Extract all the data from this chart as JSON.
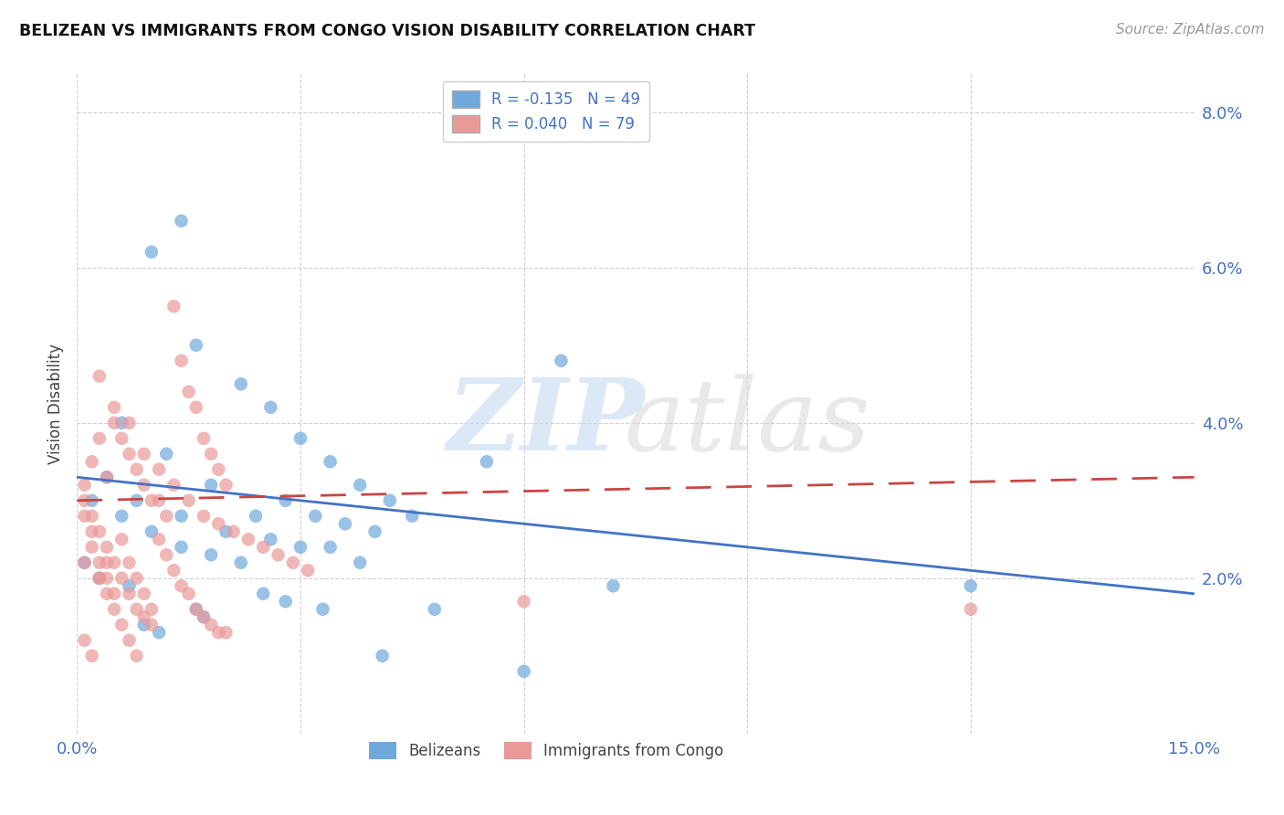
{
  "title": "BELIZEAN VS IMMIGRANTS FROM CONGO VISION DISABILITY CORRELATION CHART",
  "source": "Source: ZipAtlas.com",
  "ylabel": "Vision Disability",
  "xlim": [
    0.0,
    0.15
  ],
  "ylim": [
    0.0,
    0.085
  ],
  "belizean_color": "#6fa8dc",
  "congo_color": "#ea9999",
  "belizean_line_color": "#4472c4",
  "congo_line_color": "#cc4444",
  "belizean_R": -0.135,
  "belizean_N": 49,
  "congo_R": 0.04,
  "congo_N": 79,
  "belizean_x": [
    0.014,
    0.01,
    0.016,
    0.022,
    0.026,
    0.03,
    0.034,
    0.038,
    0.042,
    0.006,
    0.012,
    0.018,
    0.024,
    0.028,
    0.032,
    0.036,
    0.04,
    0.004,
    0.008,
    0.014,
    0.02,
    0.026,
    0.03,
    0.034,
    0.002,
    0.006,
    0.01,
    0.014,
    0.018,
    0.022,
    0.055,
    0.065,
    0.12,
    0.001,
    0.003,
    0.007,
    0.045,
    0.028,
    0.072,
    0.038,
    0.016,
    0.025,
    0.009,
    0.017,
    0.033,
    0.048,
    0.011,
    0.041,
    0.06
  ],
  "belizean_y": [
    0.066,
    0.062,
    0.05,
    0.045,
    0.042,
    0.038,
    0.035,
    0.032,
    0.03,
    0.04,
    0.036,
    0.032,
    0.028,
    0.03,
    0.028,
    0.027,
    0.026,
    0.033,
    0.03,
    0.028,
    0.026,
    0.025,
    0.024,
    0.024,
    0.03,
    0.028,
    0.026,
    0.024,
    0.023,
    0.022,
    0.035,
    0.048,
    0.019,
    0.022,
    0.02,
    0.019,
    0.028,
    0.017,
    0.019,
    0.022,
    0.016,
    0.018,
    0.014,
    0.015,
    0.016,
    0.016,
    0.013,
    0.01,
    0.008
  ],
  "congo_x": [
    0.001,
    0.001,
    0.002,
    0.002,
    0.003,
    0.003,
    0.004,
    0.004,
    0.005,
    0.005,
    0.006,
    0.006,
    0.007,
    0.007,
    0.008,
    0.008,
    0.009,
    0.009,
    0.01,
    0.01,
    0.011,
    0.011,
    0.012,
    0.012,
    0.013,
    0.013,
    0.014,
    0.014,
    0.015,
    0.015,
    0.016,
    0.016,
    0.017,
    0.017,
    0.018,
    0.018,
    0.019,
    0.019,
    0.02,
    0.02,
    0.003,
    0.005,
    0.007,
    0.009,
    0.011,
    0.013,
    0.015,
    0.017,
    0.019,
    0.021,
    0.023,
    0.025,
    0.027,
    0.029,
    0.031,
    0.001,
    0.002,
    0.003,
    0.004,
    0.005,
    0.006,
    0.007,
    0.008,
    0.009,
    0.01,
    0.06,
    0.12,
    0.002,
    0.004,
    0.003,
    0.001,
    0.002,
    0.001,
    0.003,
    0.004,
    0.005,
    0.006,
    0.007,
    0.008
  ],
  "congo_y": [
    0.032,
    0.028,
    0.035,
    0.026,
    0.038,
    0.022,
    0.033,
    0.02,
    0.04,
    0.018,
    0.038,
    0.025,
    0.036,
    0.022,
    0.034,
    0.02,
    0.032,
    0.018,
    0.03,
    0.016,
    0.03,
    0.025,
    0.028,
    0.023,
    0.055,
    0.021,
    0.048,
    0.019,
    0.044,
    0.018,
    0.042,
    0.016,
    0.038,
    0.015,
    0.036,
    0.014,
    0.034,
    0.013,
    0.032,
    0.013,
    0.046,
    0.042,
    0.04,
    0.036,
    0.034,
    0.032,
    0.03,
    0.028,
    0.027,
    0.026,
    0.025,
    0.024,
    0.023,
    0.022,
    0.021,
    0.03,
    0.028,
    0.026,
    0.024,
    0.022,
    0.02,
    0.018,
    0.016,
    0.015,
    0.014,
    0.017,
    0.016,
    0.024,
    0.022,
    0.02,
    0.012,
    0.01,
    0.022,
    0.02,
    0.018,
    0.016,
    0.014,
    0.012,
    0.01
  ]
}
